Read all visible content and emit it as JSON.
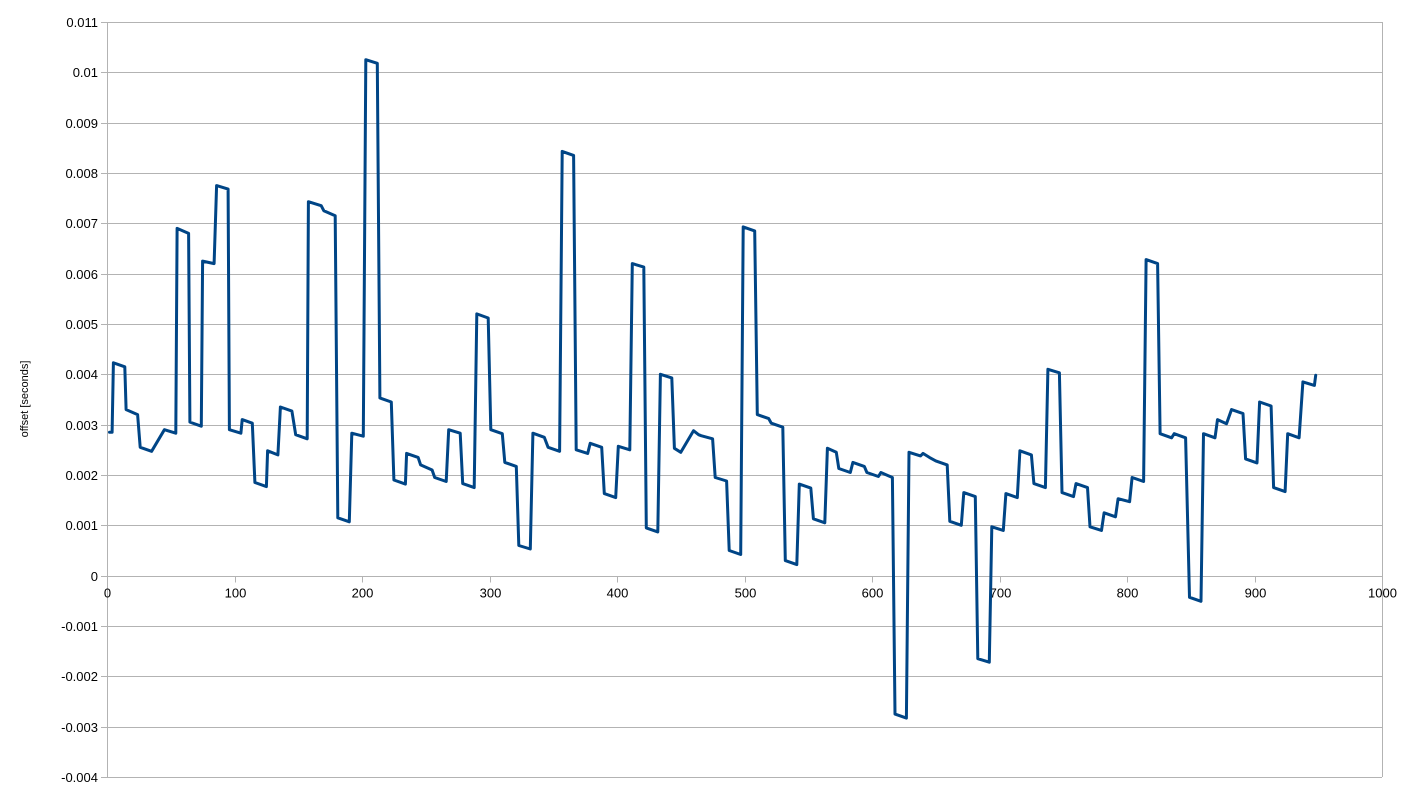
{
  "chart_data": {
    "type": "line",
    "title": "",
    "xlabel": "",
    "ylabel": "offset [seconds]",
    "xlim": [
      0,
      1000
    ],
    "ylim": [
      -0.004,
      0.011
    ],
    "x_ticks": [
      0,
      100,
      200,
      300,
      400,
      500,
      600,
      700,
      800,
      900,
      1000
    ],
    "x_tick_labels": [
      "0",
      "100",
      "200",
      "300",
      "400",
      "500",
      "600",
      "700",
      "800",
      "900",
      "1000"
    ],
    "y_ticks": [
      0.011,
      0.01,
      0.009,
      0.008,
      0.007,
      0.006,
      0.005,
      0.004,
      0.003,
      0.002,
      0.001,
      0,
      -0.001,
      -0.002,
      -0.003,
      -0.004
    ],
    "y_tick_labels": [
      "0.011",
      "0.01",
      "0.009",
      "0.008",
      "0.007",
      "0.006",
      "0.005",
      "0.004",
      "0.003",
      "0.002",
      "0.001",
      "0",
      "-0.001",
      "-0.002",
      "-0.003",
      "-0.004"
    ],
    "grid": "horizontal",
    "legend": "none",
    "series": [
      {
        "color": "#004586",
        "x": [
          2,
          4,
          5,
          14,
          15,
          24,
          26,
          35,
          45,
          54,
          55,
          64,
          65,
          74,
          75,
          84,
          86,
          95,
          96,
          105,
          106,
          114,
          116,
          125,
          126,
          134,
          136,
          145,
          148,
          157,
          158,
          168,
          170,
          179,
          181,
          190,
          192,
          201,
          203,
          212,
          214,
          223,
          225,
          234,
          235,
          244,
          246,
          255,
          257,
          266,
          268,
          277,
          279,
          288,
          290,
          299,
          301,
          310,
          312,
          321,
          323,
          332,
          334,
          343,
          346,
          355,
          357,
          366,
          368,
          377,
          379,
          388,
          390,
          399,
          401,
          410,
          412,
          421,
          423,
          432,
          434,
          443,
          445,
          450,
          460,
          464,
          466,
          475,
          477,
          486,
          488,
          497,
          499,
          508,
          510,
          519,
          521,
          530,
          532,
          541,
          543,
          552,
          554,
          563,
          565,
          572,
          574,
          583,
          585,
          594,
          596,
          605,
          607,
          616,
          618,
          627,
          629,
          638,
          640,
          645,
          650,
          659,
          661,
          670,
          672,
          681,
          683,
          692,
          694,
          703,
          705,
          714,
          716,
          725,
          727,
          736,
          738,
          747,
          749,
          758,
          760,
          769,
          771,
          780,
          782,
          791,
          793,
          802,
          804,
          813,
          815,
          824,
          826,
          835,
          837,
          846,
          849,
          858,
          860,
          869,
          871,
          878,
          882,
          891,
          893,
          902,
          904,
          913,
          915,
          924,
          926,
          935,
          938,
          947,
          948
        ],
        "values": [
          0.00285,
          0.00285,
          0.00423,
          0.00415,
          0.0033,
          0.0032,
          0.00255,
          0.00247,
          0.0029,
          0.00283,
          0.0069,
          0.0068,
          0.00305,
          0.00297,
          0.00625,
          0.0062,
          0.00775,
          0.00768,
          0.0029,
          0.00283,
          0.0031,
          0.00303,
          0.00185,
          0.00177,
          0.00248,
          0.0024,
          0.00335,
          0.00327,
          0.0028,
          0.00272,
          0.00743,
          0.00735,
          0.00725,
          0.00715,
          0.00115,
          0.00107,
          0.00283,
          0.00277,
          0.01025,
          0.01018,
          0.00353,
          0.00345,
          0.0019,
          0.00182,
          0.00243,
          0.00235,
          0.0022,
          0.0021,
          0.00195,
          0.00187,
          0.0029,
          0.00283,
          0.00183,
          0.00175,
          0.0052,
          0.00512,
          0.0029,
          0.00282,
          0.00225,
          0.00217,
          0.0006,
          0.00053,
          0.00283,
          0.00275,
          0.00255,
          0.00247,
          0.00843,
          0.00835,
          0.0025,
          0.00243,
          0.00263,
          0.00255,
          0.00163,
          0.00155,
          0.00257,
          0.0025,
          0.0062,
          0.00613,
          0.00095,
          0.00087,
          0.004,
          0.00393,
          0.00253,
          0.00245,
          0.00288,
          0.0028,
          0.00278,
          0.00272,
          0.00195,
          0.00188,
          0.0005,
          0.00042,
          0.00693,
          0.00685,
          0.0032,
          0.00312,
          0.00303,
          0.00295,
          0.0003,
          0.00022,
          0.00182,
          0.00174,
          0.00113,
          0.00105,
          0.00253,
          0.00245,
          0.00213,
          0.00205,
          0.00225,
          0.00217,
          0.00205,
          0.00197,
          0.00205,
          0.00195,
          -0.00275,
          -0.00283,
          0.00245,
          0.00238,
          0.00243,
          0.00235,
          0.00228,
          0.0022,
          0.00108,
          0.001,
          0.00165,
          0.00157,
          -0.00165,
          -0.00172,
          0.00097,
          0.0009,
          0.00163,
          0.00155,
          0.00248,
          0.0024,
          0.00183,
          0.00175,
          0.0041,
          0.00403,
          0.00165,
          0.00157,
          0.00183,
          0.00175,
          0.00097,
          0.0009,
          0.00125,
          0.00117,
          0.00153,
          0.00147,
          0.00195,
          0.00187,
          0.00628,
          0.0062,
          0.00282,
          0.00274,
          0.00282,
          0.00274,
          -0.00043,
          -0.00051,
          0.00282,
          0.00274,
          0.0031,
          0.00302,
          0.0033,
          0.00322,
          0.00232,
          0.00224,
          0.00345,
          0.00337,
          0.00175,
          0.00167,
          0.00282,
          0.00274,
          0.00385,
          0.00378,
          0.00398
        ]
      }
    ]
  }
}
